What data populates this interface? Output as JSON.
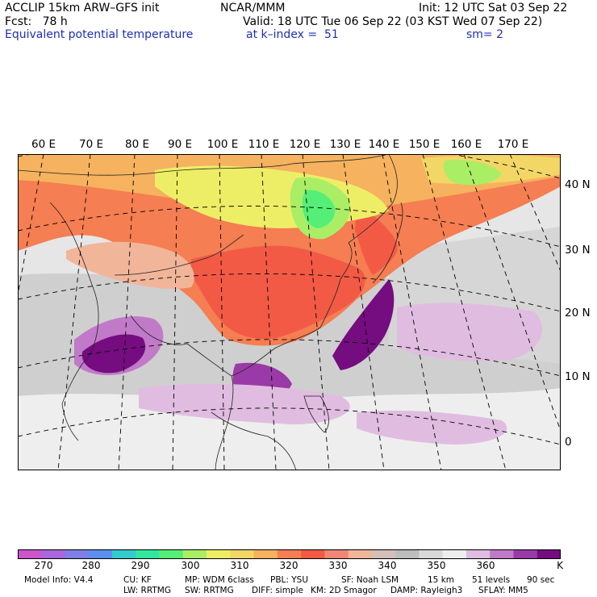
{
  "header": {
    "model": "ACCLIP 15km ARW–GFS init",
    "center": "NCAR/MMM",
    "init": "Init: 12 UTC Sat 03 Sep 22",
    "fcst": "Fcst:   78 h",
    "valid": "Valid: 18 UTC Tue 06 Sep 22 (03 KST Wed 07 Sep 22)",
    "field": "Equivalent potential temperature",
    "level": "at k–index =  51",
    "smoothing": "sm= 2"
  },
  "map": {
    "longitude_labels": [
      "60 E",
      "70 E",
      "80 E",
      "90 E",
      "100 E",
      "110 E",
      "120 E",
      "130 E",
      "140 E",
      "150 E",
      "160 E",
      "170 E"
    ],
    "latitude_labels": [
      "40 N",
      "30 N",
      "20 N",
      "10 N",
      "0"
    ]
  },
  "colorbar": {
    "unit": "K",
    "tick_labels": [
      "270",
      "280",
      "290",
      "300",
      "310",
      "320",
      "330",
      "340",
      "350",
      "360"
    ],
    "colors": [
      "#cc55cc",
      "#aa66dd",
      "#7f7fe8",
      "#5c8ff0",
      "#33cccc",
      "#33e6a0",
      "#55ee77",
      "#aaee66",
      "#eeee66",
      "#f2d766",
      "#f6b25e",
      "#f57e52",
      "#f25a46",
      "#f08775",
      "#f1b59a",
      "#d3c0b8",
      "#bdbdbd",
      "#d9d9d9",
      "#eeeeee",
      "#e0bde0",
      "#c07ac8",
      "#9a3aa6",
      "#750c80"
    ]
  },
  "model_info": {
    "line1": {
      "info": "Model Info: V4.4",
      "cu": "CU: KF",
      "mp": "MP: WDM 6class",
      "pbl": "PBL: YSU",
      "sf": "SF: Noah LSM",
      "res": "15 km",
      "levels": "51 levels",
      "dt": "90 sec"
    },
    "line2": {
      "lw": "LW: RRTMG",
      "sw": "SW: RRTMG",
      "diff": "DIFF: simple",
      "km": "KM: 2D Smagor",
      "damp": "DAMP: Rayleigh3",
      "sflay": "SFLAY: MM5"
    }
  }
}
